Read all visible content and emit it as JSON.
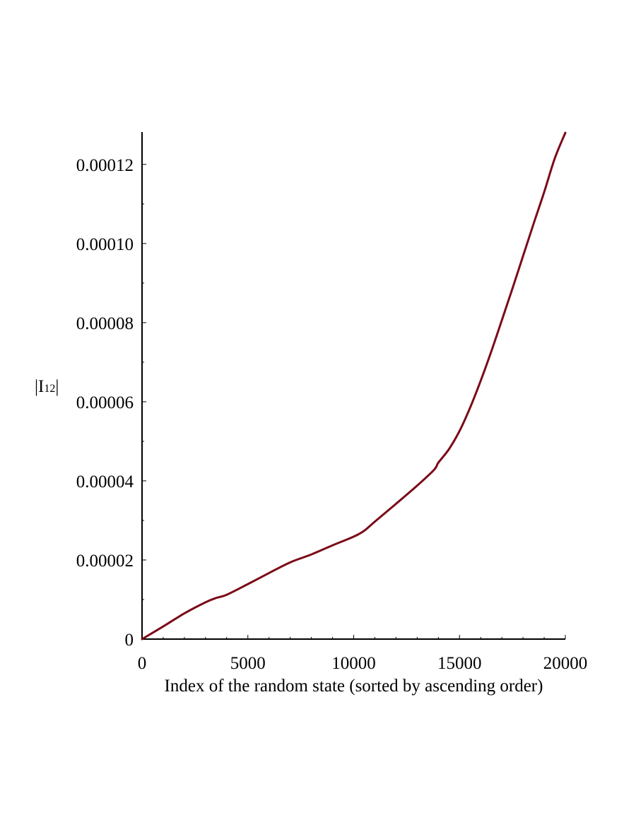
{
  "chart_data": {
    "type": "line",
    "title": "",
    "xlabel": "Index of the random state (sorted by ascending order)",
    "ylabel": "|I",
    "ylabel_subscript": "12",
    "ylabel_suffix": "|",
    "xlim": [
      0,
      20000
    ],
    "ylim": [
      0,
      0.000128
    ],
    "grid": false,
    "x_ticks": [
      0,
      5000,
      10000,
      15000,
      20000
    ],
    "x_tick_labels": [
      "0",
      "5000",
      "10000",
      "15000",
      "20000"
    ],
    "y_ticks": [
      0,
      2e-05,
      4e-05,
      6e-05,
      8e-05,
      0.0001,
      0.00012
    ],
    "y_tick_labels": [
      "0",
      "0.00002",
      "0.00004",
      "0.00006",
      "0.00008",
      "0.00010",
      "0.00012"
    ],
    "series": [
      {
        "color": "#7a0a18",
        "x": [
          0,
          1000,
          2000,
          3000,
          3500,
          4000,
          5000,
          6000,
          7000,
          8000,
          9000,
          10000,
          10500,
          11000,
          12000,
          13000,
          13800,
          14000,
          14500,
          15000,
          15500,
          16000,
          16500,
          17000,
          17500,
          18000,
          18500,
          19000,
          19500,
          20000
        ],
        "y": [
          0,
          3.2e-06,
          6.5e-06,
          9.3e-06,
          1.04e-05,
          1.12e-05,
          1.39e-05,
          1.67e-05,
          1.94e-05,
          2.14e-05,
          2.37e-05,
          2.59e-05,
          2.74e-05,
          2.97e-05,
          3.42e-05,
          3.88e-05,
          4.28e-05,
          4.46e-05,
          4.8e-05,
          5.26e-05,
          5.85e-05,
          6.53e-05,
          7.27e-05,
          8.06e-05,
          8.86e-05,
          9.68e-05,
          0.000105,
          0.000113,
          0.0001215,
          0.000128
        ]
      }
    ]
  }
}
